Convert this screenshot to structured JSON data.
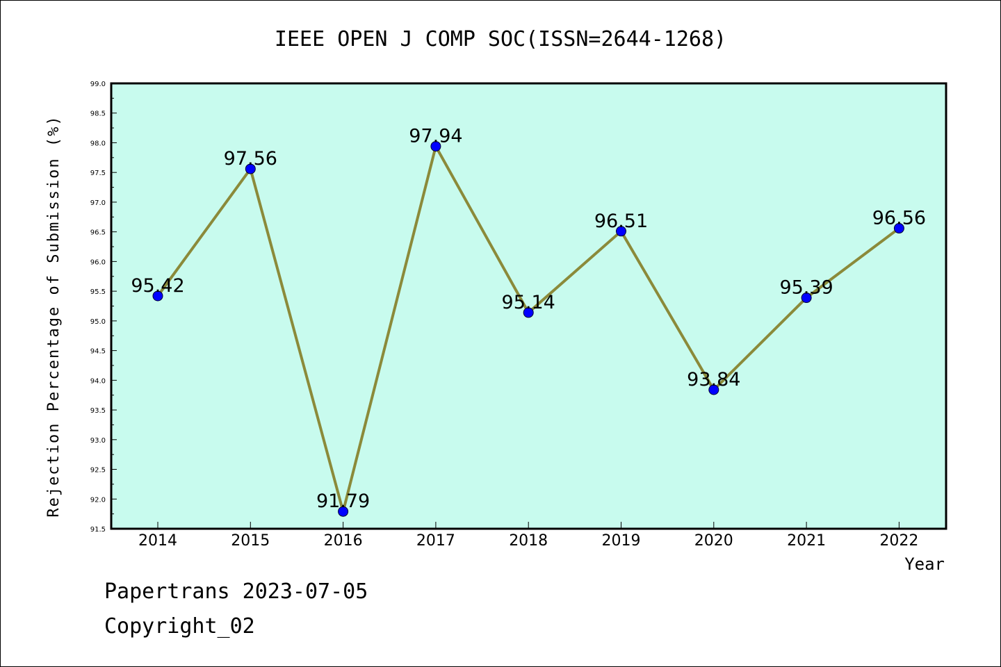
{
  "chart_data": {
    "type": "line",
    "title": "IEEE OPEN J COMP SOC(ISSN=2644-1268)",
    "xlabel": "Year",
    "ylabel": "Rejection Percentage of Submission (%)",
    "categories": [
      "2014",
      "2015",
      "2016",
      "2017",
      "2018",
      "2019",
      "2020",
      "2021",
      "2022"
    ],
    "values": [
      95.42,
      97.56,
      91.79,
      97.94,
      95.14,
      96.51,
      93.84,
      95.39,
      96.56
    ],
    "data_labels": [
      "95.42",
      "97.56",
      "91.79",
      "97.94",
      "95.14",
      "96.51",
      "93.84",
      "95.39",
      "96.56"
    ],
    "ylim": [
      91.5,
      99.0
    ],
    "yticks": [
      "91.5",
      "92.0",
      "92.5",
      "93.0",
      "93.5",
      "94.0",
      "94.5",
      "95.0",
      "95.5",
      "96.0",
      "96.5",
      "97.0",
      "97.5",
      "98.0",
      "98.5",
      "99.0"
    ],
    "grid": false,
    "colors": {
      "plot_background": "#c8fbee",
      "line": "#8b8a3a",
      "marker": "#0000ff"
    }
  },
  "footer": {
    "line1": "Papertrans 2023-07-05",
    "line2": "Copyright_02"
  }
}
